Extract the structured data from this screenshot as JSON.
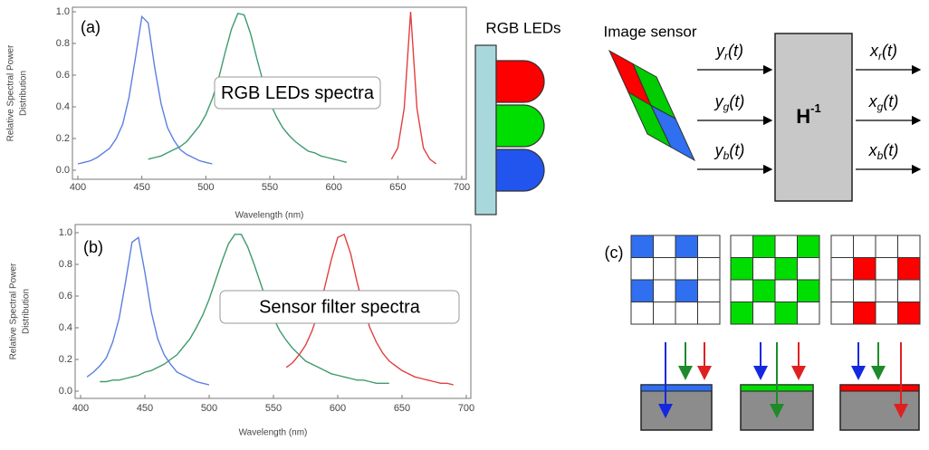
{
  "chart_data": [
    {
      "type": "line",
      "panel": "(a)",
      "annotation": "RGB LEDs spectra",
      "xlabel": "Wavelength (nm)",
      "ylabel": [
        "Relative Spectral Power",
        "Distribution"
      ],
      "xlim": [
        400,
        700
      ],
      "ylim": [
        0,
        1
      ],
      "xticks": [
        400,
        450,
        500,
        550,
        600,
        650,
        700
      ],
      "yticks": [
        {
          "value": 0,
          "label": "0.0"
        },
        0.2,
        0.4,
        0.6,
        0.8,
        {
          "value": 1,
          "label": "1.0"
        }
      ],
      "grid": false,
      "series": [
        {
          "color": "#5b7fe0",
          "x": [
            400,
            405,
            410,
            415,
            420,
            425,
            430,
            435,
            440,
            445,
            450,
            455,
            460,
            465,
            470,
            475,
            480,
            485,
            490,
            495,
            500,
            505
          ],
          "values": [
            0.04,
            0.05,
            0.06,
            0.08,
            0.11,
            0.14,
            0.2,
            0.29,
            0.46,
            0.71,
            0.97,
            0.93,
            0.65,
            0.42,
            0.27,
            0.19,
            0.13,
            0.1,
            0.08,
            0.06,
            0.05,
            0.04
          ]
        },
        {
          "color": "#3e9b6e",
          "x": [
            455,
            460,
            465,
            470,
            475,
            480,
            485,
            490,
            495,
            500,
            505,
            510,
            515,
            520,
            525,
            530,
            535,
            540,
            545,
            550,
            555,
            560,
            565,
            570,
            575,
            580,
            585,
            590,
            595,
            600,
            605,
            610
          ],
          "values": [
            0.07,
            0.08,
            0.09,
            0.11,
            0.13,
            0.15,
            0.18,
            0.23,
            0.28,
            0.35,
            0.45,
            0.58,
            0.74,
            0.89,
            0.99,
            0.98,
            0.86,
            0.7,
            0.55,
            0.43,
            0.34,
            0.27,
            0.22,
            0.18,
            0.15,
            0.12,
            0.11,
            0.09,
            0.08,
            0.07,
            0.06,
            0.05
          ]
        },
        {
          "color": "#e0403f",
          "x": [
            645,
            650,
            655,
            660,
            665,
            670,
            675,
            680
          ],
          "values": [
            0.07,
            0.14,
            0.39,
            1.0,
            0.39,
            0.14,
            0.07,
            0.04
          ]
        }
      ]
    },
    {
      "type": "line",
      "panel": "(b)",
      "annotation": "Sensor filter spectra",
      "xlabel": "Wavelength (nm)",
      "ylabel": [
        "Relative Spectral Power",
        "Distribution"
      ],
      "xlim": [
        400,
        700
      ],
      "ylim": [
        0,
        1
      ],
      "xticks": [
        400,
        450,
        500,
        550,
        600,
        650,
        700
      ],
      "yticks": [
        {
          "value": 0,
          "label": "0.0"
        },
        0.2,
        0.4,
        0.6,
        0.8,
        {
          "value": 1,
          "label": "1.0"
        }
      ],
      "grid": false,
      "series": [
        {
          "color": "#5b7fe0",
          "x": [
            405,
            410,
            415,
            420,
            425,
            430,
            435,
            440,
            445,
            450,
            455,
            460,
            465,
            470,
            475,
            480,
            485,
            490,
            495,
            500
          ],
          "values": [
            0.09,
            0.12,
            0.16,
            0.21,
            0.31,
            0.46,
            0.69,
            0.94,
            0.97,
            0.75,
            0.5,
            0.33,
            0.23,
            0.17,
            0.12,
            0.1,
            0.08,
            0.06,
            0.05,
            0.04
          ]
        },
        {
          "color": "#3e9b6e",
          "x": [
            415,
            420,
            425,
            430,
            435,
            440,
            445,
            450,
            455,
            460,
            465,
            470,
            475,
            480,
            485,
            490,
            495,
            500,
            505,
            510,
            515,
            520,
            525,
            530,
            535,
            540,
            545,
            550,
            555,
            560,
            565,
            570,
            575,
            580,
            585,
            590,
            595,
            600,
            605,
            610,
            615,
            620,
            625,
            630,
            635,
            640
          ],
          "values": [
            0.06,
            0.06,
            0.07,
            0.07,
            0.08,
            0.09,
            0.1,
            0.12,
            0.13,
            0.15,
            0.17,
            0.2,
            0.23,
            0.28,
            0.33,
            0.4,
            0.48,
            0.58,
            0.7,
            0.82,
            0.93,
            0.99,
            0.99,
            0.91,
            0.8,
            0.68,
            0.56,
            0.46,
            0.38,
            0.32,
            0.27,
            0.23,
            0.19,
            0.17,
            0.15,
            0.13,
            0.11,
            0.1,
            0.09,
            0.08,
            0.07,
            0.07,
            0.06,
            0.05,
            0.05,
            0.05
          ]
        },
        {
          "color": "#e0403f",
          "x": [
            560,
            565,
            570,
            575,
            580,
            585,
            590,
            595,
            600,
            605,
            610,
            615,
            620,
            625,
            630,
            635,
            640,
            645,
            650,
            655,
            660,
            665,
            670,
            675,
            680,
            685,
            690
          ],
          "values": [
            0.15,
            0.18,
            0.23,
            0.29,
            0.38,
            0.5,
            0.66,
            0.83,
            0.97,
            0.99,
            0.87,
            0.69,
            0.53,
            0.4,
            0.31,
            0.24,
            0.19,
            0.16,
            0.13,
            0.11,
            0.09,
            0.08,
            0.07,
            0.06,
            0.05,
            0.05,
            0.04
          ]
        }
      ]
    }
  ],
  "diagram": {
    "led_label": "RGB LEDs",
    "sensor_label": "Image sensor",
    "inputs": [
      {
        "var": "y",
        "sub": "r",
        "arg": "(t)"
      },
      {
        "var": "y",
        "sub": "g",
        "arg": "(t)"
      },
      {
        "var": "y",
        "sub": "b",
        "arg": "(t)"
      }
    ],
    "outputs": [
      {
        "var": "x",
        "sub": "r",
        "arg": "(t)"
      },
      {
        "var": "x",
        "sub": "g",
        "arg": "(t)"
      },
      {
        "var": "x",
        "sub": "b",
        "arg": "(t)"
      }
    ],
    "matrix": {
      "base": "H",
      "sup": "-1"
    },
    "panel_label": "(c)"
  }
}
